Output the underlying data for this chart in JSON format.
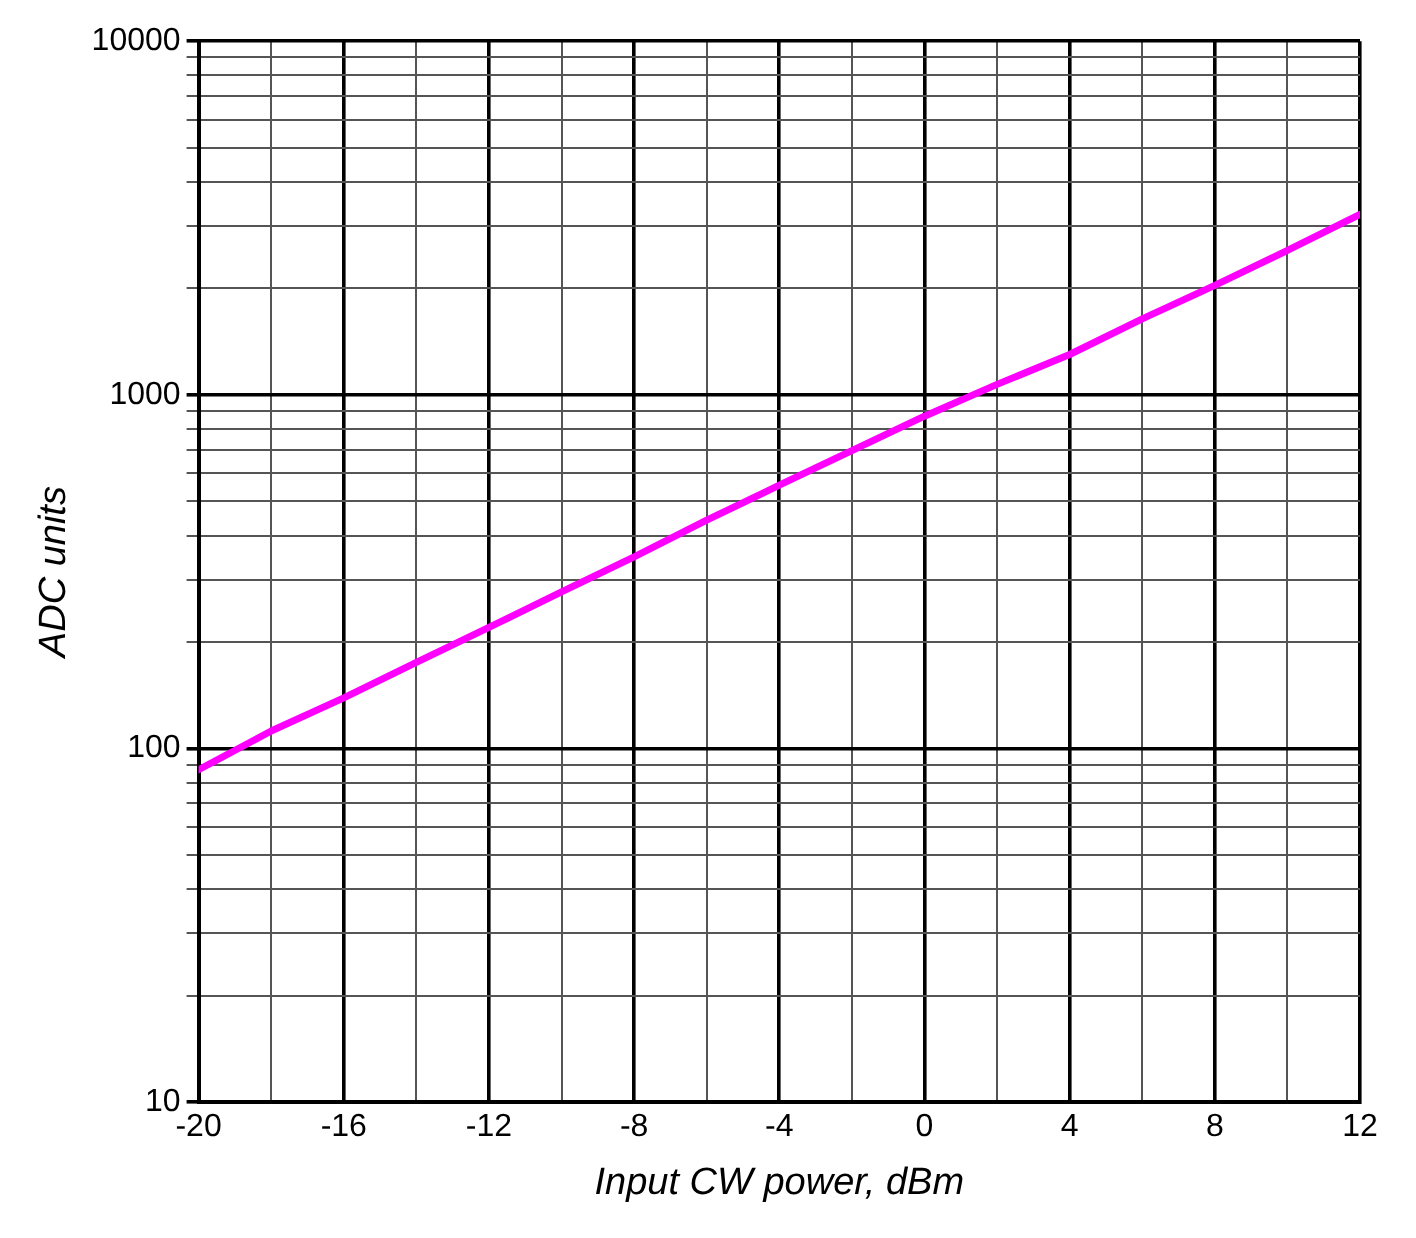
{
  "chart_data": {
    "type": "line",
    "xlabel": "Input CW power, dBm",
    "ylabel": "ADC units",
    "x": [
      -20,
      -18,
      -16,
      -14,
      -12,
      -10,
      -8,
      -6,
      -4,
      -2,
      0,
      2,
      4,
      6,
      8,
      10,
      12
    ],
    "series": [
      {
        "color": "#ff00ff",
        "values": [
          87,
          112,
          139,
          175,
          220,
          277,
          348,
          442,
          555,
          695,
          870,
          1070,
          1300,
          1640,
          2040,
          2560,
          3240
        ]
      }
    ],
    "log": "y",
    "grid": true,
    "marker": "none",
    "line_style": "solid",
    "legend": false,
    "xlim": [
      -20,
      12
    ],
    "xticks": [
      -20,
      {
        "value": -18,
        "label": null
      },
      -16,
      {
        "value": -14,
        "label": null
      },
      -12,
      {
        "value": -10,
        "label": null
      },
      -8,
      {
        "value": -6,
        "label": null
      },
      -4,
      {
        "value": -2,
        "label": null
      },
      0,
      {
        "value": 2,
        "label": null
      },
      4,
      {
        "value": 6,
        "label": null
      },
      8,
      {
        "value": 10,
        "label": null
      },
      12
    ],
    "ylim": [
      10,
      10000
    ],
    "yticks": [
      10,
      {
        "value": 20,
        "label": null
      },
      {
        "value": 30,
        "label": null
      },
      {
        "value": 40,
        "label": null
      },
      {
        "value": 50,
        "label": null
      },
      {
        "value": 60,
        "label": null
      },
      {
        "value": 70,
        "label": null
      },
      {
        "value": 80,
        "label": null
      },
      {
        "value": 90,
        "label": null
      },
      100,
      {
        "value": 200,
        "label": null
      },
      {
        "value": 300,
        "label": null
      },
      {
        "value": 400,
        "label": null
      },
      {
        "value": 500,
        "label": null
      },
      {
        "value": 600,
        "label": null
      },
      {
        "value": 700,
        "label": null
      },
      {
        "value": 800,
        "label": null
      },
      {
        "value": 900,
        "label": null
      },
      1000,
      {
        "value": 2000,
        "label": null
      },
      {
        "value": 3000,
        "label": null
      },
      {
        "value": 4000,
        "label": null
      },
      {
        "value": 5000,
        "label": null
      },
      {
        "value": 6000,
        "label": null
      },
      {
        "value": 7000,
        "label": null
      },
      {
        "value": 8000,
        "label": null
      },
      {
        "value": 9000,
        "label": null
      },
      10000
    ]
  }
}
